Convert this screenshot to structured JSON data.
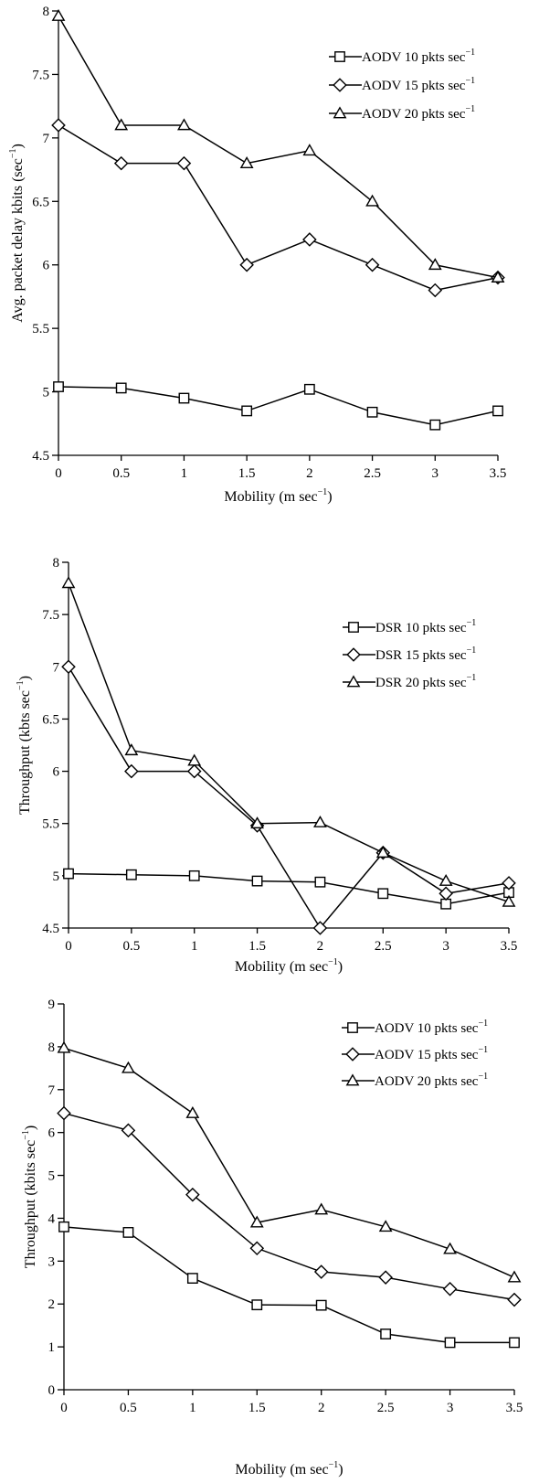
{
  "chart_data": [
    {
      "type": "line",
      "xlabel": "Mobility (m sec",
      "xlabel_sup": "-1",
      "xlabel_suffix": ")",
      "ylabel": "Avg.  packet delay  kbits (sec",
      "ylabel_sup": "-1",
      "ylabel_suffix": ")",
      "xlim": [
        0,
        3.5
      ],
      "ylim": [
        4.5,
        8
      ],
      "xticks": [
        "0",
        "0.5",
        "1",
        "1.5",
        "2",
        "2.5",
        "3",
        "3.5"
      ],
      "yticks": [
        "4.5",
        "5",
        "5.5",
        "6",
        "6.5",
        "7",
        "7.5",
        "8"
      ],
      "grid": false,
      "legend_position": "top-right",
      "x": [
        0,
        0.5,
        1,
        1.5,
        2,
        2.5,
        3,
        3.5
      ],
      "series": [
        {
          "name": "AODV 10 pkts sec",
          "name_sup": "-1",
          "marker": "square",
          "values": [
            5.04,
            5.03,
            4.95,
            4.85,
            5.02,
            4.84,
            4.74,
            4.85
          ]
        },
        {
          "name": "AODV 15 pkts sec",
          "name_sup": "-1",
          "marker": "diamond",
          "values": [
            7.1,
            6.8,
            6.8,
            6.0,
            6.2,
            6.0,
            5.8,
            5.9
          ]
        },
        {
          "name": "AODV 20 pkts sec",
          "name_sup": "-1",
          "marker": "triangle",
          "values": [
            7.96,
            7.1,
            7.1,
            6.8,
            6.9,
            6.5,
            6.0,
            5.9
          ]
        }
      ]
    },
    {
      "type": "line",
      "xlabel": "Mobility (m sec",
      "xlabel_sup": "-1",
      "xlabel_suffix": ")",
      "ylabel": "Throughput (kbts sec",
      "ylabel_sup": "-1",
      "ylabel_suffix": ")",
      "xlim": [
        0,
        3.5
      ],
      "ylim": [
        4.5,
        8
      ],
      "xticks": [
        "0",
        "0.5",
        "1",
        "1.5",
        "2",
        "2.5",
        "3",
        "3.5"
      ],
      "yticks": [
        "4.5",
        "5",
        "5.5",
        "6",
        "6.5",
        "7",
        "7.5",
        "8"
      ],
      "grid": false,
      "legend_position": "right",
      "x": [
        0,
        0.5,
        1,
        1.5,
        2,
        2.5,
        3,
        3.5
      ],
      "series": [
        {
          "name": "DSR 10 pkts  sec",
          "name_sup": "-1",
          "marker": "square",
          "values": [
            5.02,
            5.01,
            5.0,
            4.95,
            4.94,
            4.83,
            4.73,
            4.84
          ]
        },
        {
          "name": "DSR 15 pkts sec",
          "name_sup": "-1",
          "marker": "diamond",
          "values": [
            7.0,
            6.0,
            6.0,
            5.48,
            4.5,
            5.22,
            4.83,
            4.93
          ]
        },
        {
          "name": "DSR 20 pkts sec",
          "name_sup": "-1",
          "marker": "triangle",
          "values": [
            7.8,
            6.2,
            6.1,
            5.5,
            5.51,
            5.22,
            4.95,
            4.75
          ]
        }
      ]
    },
    {
      "type": "line",
      "xlabel": "Mobility (m sec",
      "xlabel_sup": "-1",
      "xlabel_suffix": ")",
      "ylabel": "Throughput (kbits sec",
      "ylabel_sup": "-1",
      "ylabel_suffix": ")",
      "xlim": [
        0,
        3.5
      ],
      "ylim": [
        0,
        9
      ],
      "xticks": [
        "0",
        "0.5",
        "1",
        "1.5",
        "2",
        "2.5",
        "3",
        "3.5"
      ],
      "yticks": [
        "0",
        "1",
        "2",
        "3",
        "4",
        "5",
        "6",
        "7",
        "8",
        "9"
      ],
      "grid": false,
      "legend_position": "top-right",
      "x": [
        0,
        0.5,
        1,
        1.5,
        2,
        2.5,
        3,
        3.5
      ],
      "series": [
        {
          "name": "AODV 10 pkts sec",
          "name_sup": "-1",
          "marker": "square",
          "values": [
            3.8,
            3.67,
            2.6,
            1.98,
            1.97,
            1.3,
            1.1,
            1.1
          ]
        },
        {
          "name": "AODV 15 pkts sec",
          "name_sup": "-1",
          "marker": "diamond",
          "values": [
            6.45,
            6.05,
            4.55,
            3.3,
            2.75,
            2.62,
            2.35,
            2.1
          ]
        },
        {
          "name": "AODV 20 pkts sec",
          "name_sup": "-1",
          "marker": "triangle",
          "values": [
            7.97,
            7.5,
            6.45,
            3.9,
            4.2,
            3.8,
            3.28,
            2.62
          ]
        }
      ]
    }
  ]
}
